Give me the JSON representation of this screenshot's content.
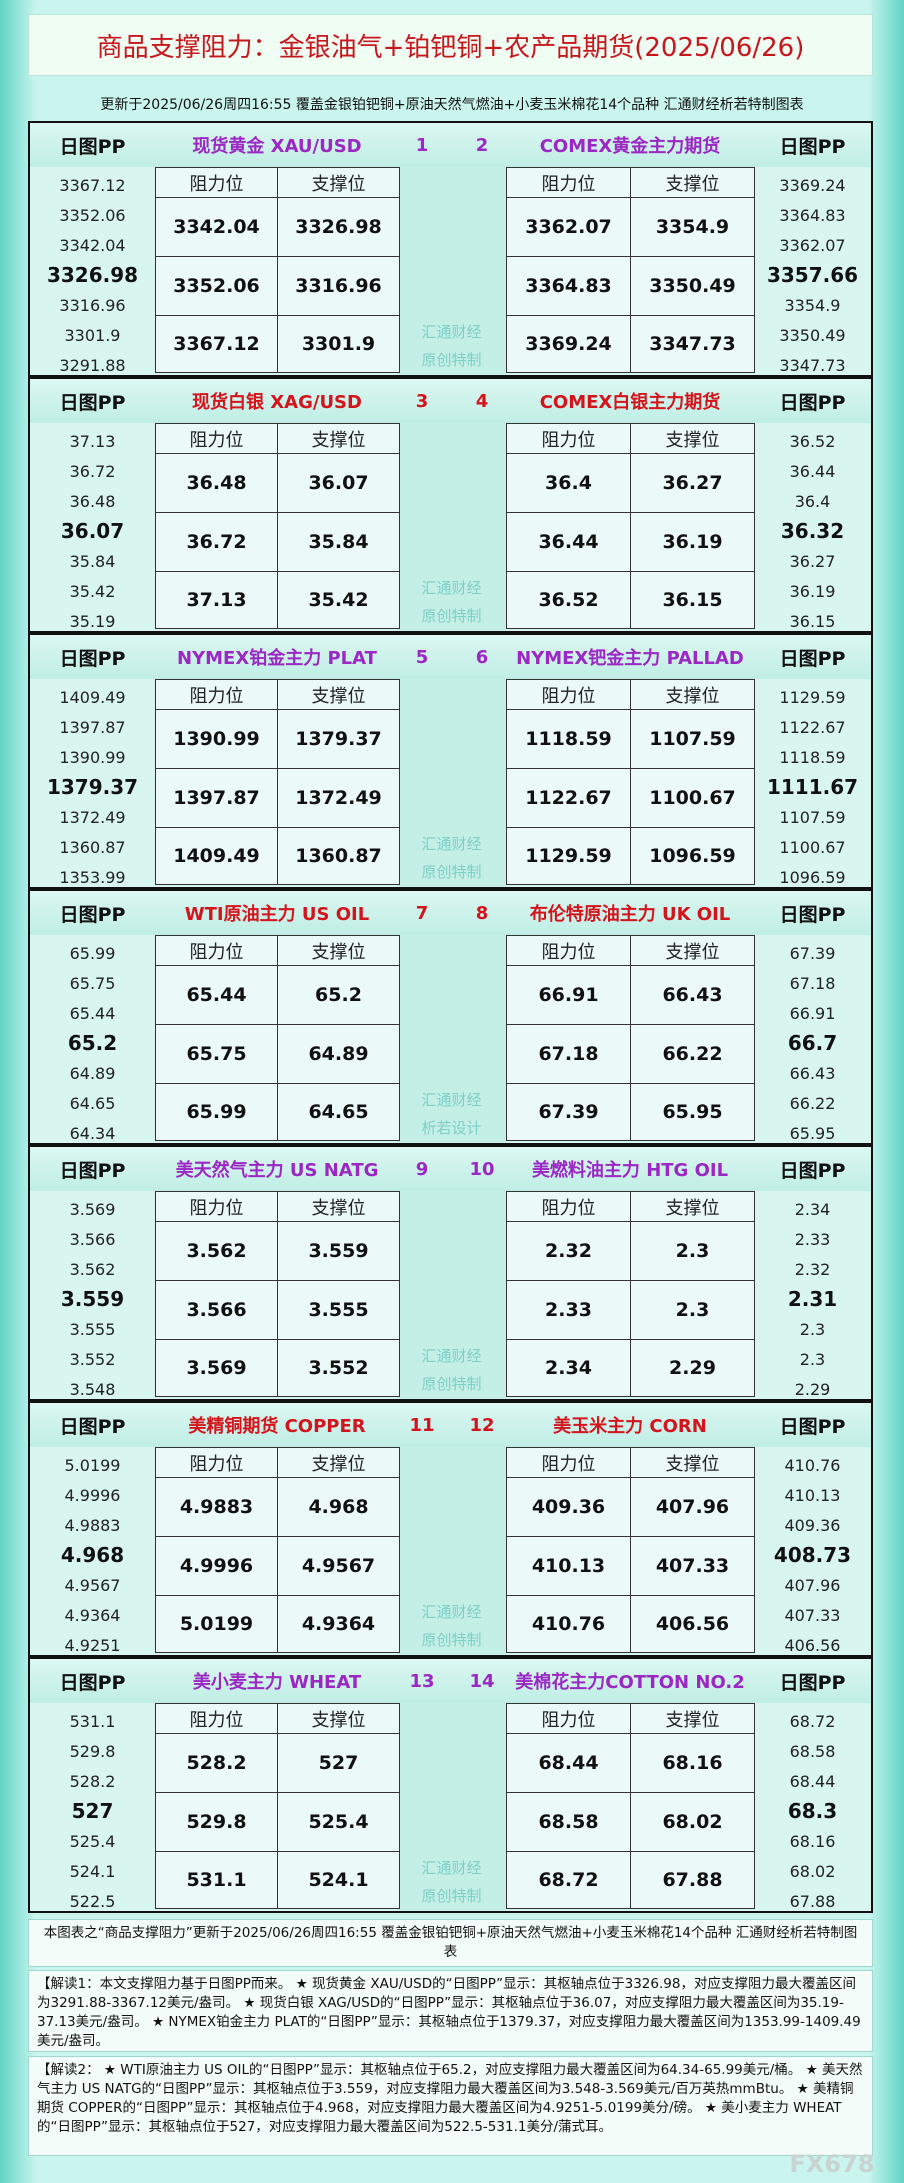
{
  "header": {
    "title": "商品支撑阻力：金银油气+铂钯铜+农产品期货(2025/06/26)",
    "subtitle": "更新于2025/06/26周四16:55  覆盖金银铂钯铜+原油天然气燃油+小麦玉米棉花14个品种  汇通财经析若特制图表"
  },
  "pp_label": "日图PP",
  "table_header": [
    "阻力位",
    "支撑位"
  ],
  "panels": [
    {
      "color": "#9b27c4",
      "watermark": [
        "汇通财经",
        "原创特制"
      ],
      "left": {
        "no": 1,
        "name": "现货黄金 XAU/USD",
        "pp": [
          3367.12,
          3352.06,
          3342.04,
          3326.98,
          3316.96,
          3301.9,
          3291.88
        ],
        "table": [
          [
            3342.04,
            3326.98
          ],
          [
            3352.06,
            3316.96
          ],
          [
            3367.12,
            3301.9
          ]
        ]
      },
      "right": {
        "no": 2,
        "name": "COMEX黄金主力期货",
        "pp": [
          3369.24,
          3364.83,
          3362.07,
          3357.66,
          3354.9,
          3350.49,
          3347.73
        ],
        "table": [
          [
            3362.07,
            3354.9
          ],
          [
            3364.83,
            3350.49
          ],
          [
            3369.24,
            3347.73
          ]
        ]
      }
    },
    {
      "color": "#d4141c",
      "watermark": [
        "汇通财经",
        "原创特制"
      ],
      "left": {
        "no": 3,
        "name": "现货白银 XAG/USD",
        "pp": [
          37.13,
          36.72,
          36.48,
          36.07,
          35.84,
          35.42,
          35.19
        ],
        "table": [
          [
            36.48,
            36.07
          ],
          [
            36.72,
            35.84
          ],
          [
            37.13,
            35.42
          ]
        ]
      },
      "right": {
        "no": 4,
        "name": "COMEX白银主力期货",
        "pp": [
          36.52,
          36.44,
          36.4,
          36.32,
          36.27,
          36.19,
          36.15
        ],
        "table": [
          [
            36.4,
            36.27
          ],
          [
            36.44,
            36.19
          ],
          [
            36.52,
            36.15
          ]
        ]
      }
    },
    {
      "color": "#9b27c4",
      "watermark": [
        "汇通财经",
        "原创特制"
      ],
      "left": {
        "no": 5,
        "name": "NYMEX铂金主力 PLAT",
        "pp": [
          1409.49,
          1397.87,
          1390.99,
          1379.37,
          1372.49,
          1360.87,
          1353.99
        ],
        "table": [
          [
            1390.99,
            1379.37
          ],
          [
            1397.87,
            1372.49
          ],
          [
            1409.49,
            1360.87
          ]
        ]
      },
      "right": {
        "no": 6,
        "name": "NYMEX钯金主力 PALLAD",
        "pp": [
          1129.59,
          1122.67,
          1118.59,
          1111.67,
          1107.59,
          1100.67,
          1096.59
        ],
        "table": [
          [
            1118.59,
            1107.59
          ],
          [
            1122.67,
            1100.67
          ],
          [
            1129.59,
            1096.59
          ]
        ]
      }
    },
    {
      "color": "#d4141c",
      "watermark": [
        "汇通财经",
        "析若设计"
      ],
      "left": {
        "no": 7,
        "name": "WTI原油主力 US OIL",
        "pp": [
          65.99,
          65.75,
          65.44,
          65.2,
          64.89,
          64.65,
          64.34
        ],
        "table": [
          [
            65.44,
            65.2
          ],
          [
            65.75,
            64.89
          ],
          [
            65.99,
            64.65
          ]
        ]
      },
      "right": {
        "no": 8,
        "name": "布伦特原油主力 UK OIL",
        "pp": [
          67.39,
          67.18,
          66.91,
          66.7,
          66.43,
          66.22,
          65.95
        ],
        "table": [
          [
            66.91,
            66.43
          ],
          [
            67.18,
            66.22
          ],
          [
            67.39,
            65.95
          ]
        ]
      }
    },
    {
      "color": "#9b27c4",
      "watermark": [
        "汇通财经",
        "原创特制"
      ],
      "left": {
        "no": 9,
        "name": "美天然气主力 US NATG",
        "pp": [
          3.569,
          3.566,
          3.562,
          3.559,
          3.555,
          3.552,
          3.548
        ],
        "table": [
          [
            3.562,
            3.559
          ],
          [
            3.566,
            3.555
          ],
          [
            3.569,
            3.552
          ]
        ]
      },
      "right": {
        "no": 10,
        "name": "美燃料油主力 HTG OIL",
        "pp": [
          2.34,
          2.33,
          2.32,
          2.31,
          2.3,
          2.3,
          2.29
        ],
        "table": [
          [
            2.32,
            2.3
          ],
          [
            2.33,
            2.3
          ],
          [
            2.34,
            2.29
          ]
        ]
      }
    },
    {
      "color": "#d4141c",
      "watermark": [
        "汇通财经",
        "原创特制"
      ],
      "left": {
        "no": 11,
        "name": "美精铜期货 COPPER",
        "pp": [
          5.0199,
          4.9996,
          4.9883,
          4.968,
          4.9567,
          4.9364,
          4.9251
        ],
        "table": [
          [
            4.9883,
            4.968
          ],
          [
            4.9996,
            4.9567
          ],
          [
            5.0199,
            4.9364
          ]
        ]
      },
      "right": {
        "no": 12,
        "name": "美玉米主力 CORN",
        "pp": [
          410.76,
          410.13,
          409.36,
          408.73,
          407.96,
          407.33,
          406.56
        ],
        "table": [
          [
            409.36,
            407.96
          ],
          [
            410.13,
            407.33
          ],
          [
            410.76,
            406.56
          ]
        ]
      }
    },
    {
      "color": "#9b27c4",
      "watermark": [
        "汇通财经",
        "原创特制"
      ],
      "left": {
        "no": 13,
        "name": "美小麦主力 WHEAT",
        "pp": [
          531.1,
          529.8,
          528.2,
          527,
          525.4,
          524.1,
          522.5
        ],
        "table": [
          [
            528.2,
            527
          ],
          [
            529.8,
            525.4
          ],
          [
            531.1,
            524.1
          ]
        ]
      },
      "right": {
        "no": 14,
        "name": "美棉花主力COTTON NO.2",
        "pp": [
          68.72,
          68.58,
          68.44,
          68.3,
          68.16,
          68.02,
          67.88
        ],
        "table": [
          [
            68.44,
            68.16
          ],
          [
            68.58,
            68.02
          ],
          [
            68.72,
            67.88
          ]
        ]
      }
    }
  ],
  "footer": {
    "note": "本图表之“商品支撑阻力”更新于2025/06/26周四16:55 覆盖金银铂钯铜+原油天然气燃油+小麦玉米棉花14个品种 汇通财经析若特制图表",
    "explanations": [
      "【解读1：本文支撑阻力基于日图PP而来。 ★ 现货黄金 XAU/USD的“日图PP”显示：其枢轴点位于3326.98，对应支撑阻力最大覆盖区间为3291.88-3367.12美元/盎司。 ★ 现货白银 XAG/USD的“日图PP”显示：其枢轴点位于36.07，对应支撑阻力最大覆盖区间为35.19-37.13美元/盎司。 ★ NYMEX铂金主力 PLAT的“日图PP”显示：其枢轴点位于1379.37，对应支撑阻力最大覆盖区间为1353.99-1409.49美元/盎司。",
      "【解读2： ★ WTI原油主力 US OIL的“日图PP”显示：其枢轴点位于65.2，对应支撑阻力最大覆盖区间为64.34-65.99美元/桶。 ★ 美天然气主力 US NATG的“日图PP”显示：其枢轴点位于3.559，对应支撑阻力最大覆盖区间为3.548-3.569美元/百万英热mmBtu。 ★ 美精铜期货 COPPER的“日图PP”显示：其枢轴点位于4.968，对应支撑阻力最大覆盖区间为4.9251-5.0199美分/磅。 ★ 美小麦主力 WHEAT的“日图PP”显示：其枢轴点位于527，对应支撑阻力最大覆盖区间为522.5-531.1美分/蒲式耳。"
    ],
    "brand": "FX678"
  }
}
